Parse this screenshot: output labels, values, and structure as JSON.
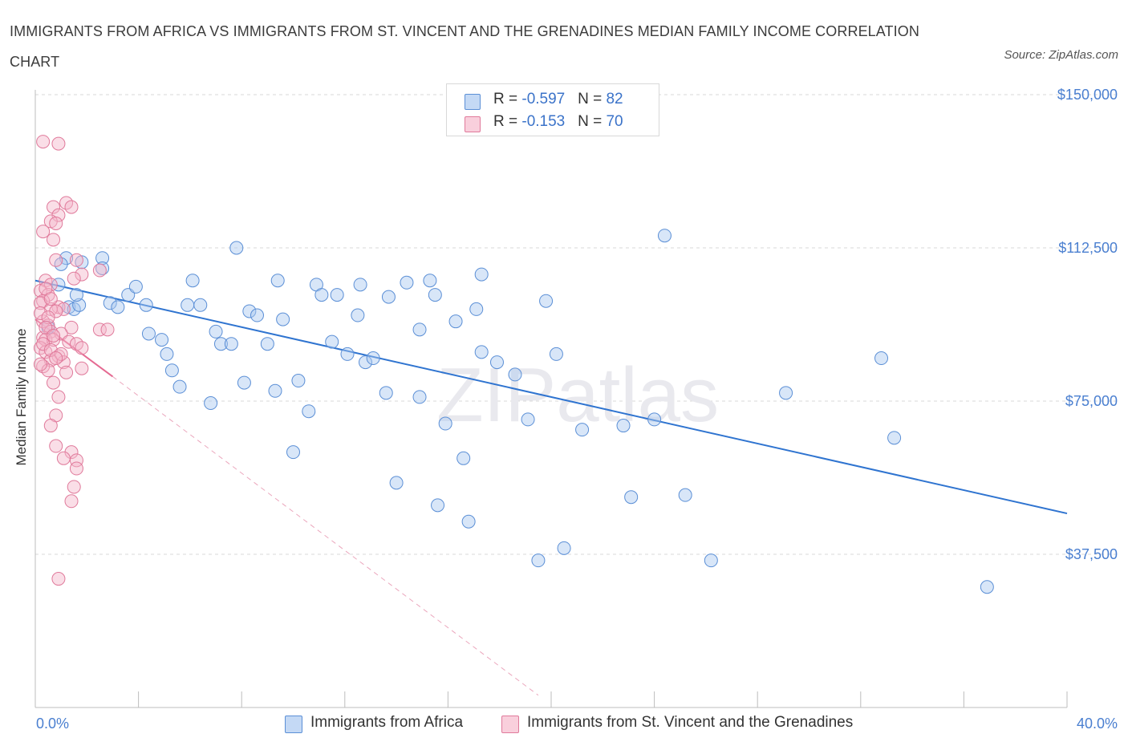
{
  "title": "IMMIGRANTS FROM AFRICA VS IMMIGRANTS FROM ST. VINCENT AND THE GRENADINES MEDIAN FAMILY INCOME CORRELATION CHART",
  "source": "Source: ZipAtlas.com",
  "watermark": "ZIPatlas",
  "legend": {
    "rows": [
      {
        "r_label": "R = ",
        "r_value": "-0.597",
        "n_label": "N = ",
        "n_value": "82",
        "color": "#a9c8f0"
      },
      {
        "r_label": "R = ",
        "r_value": "-0.153",
        "n_label": "N = ",
        "n_value": "70",
        "color": "#f5b6c9"
      }
    ]
  },
  "bottom_legend": [
    {
      "label": "Immigrants from Africa",
      "color": "#a9c8f0"
    },
    {
      "label": "Immigrants from St. Vincent and the Grenadines",
      "color": "#f5b6c9"
    }
  ],
  "chart_data": {
    "type": "scatter",
    "title": "IMMIGRANTS FROM AFRICA VS IMMIGRANTS FROM ST. VINCENT AND THE GRENADINES MEDIAN FAMILY INCOME CORRELATION CHART",
    "xlabel": "",
    "ylabel": "Median Family Income",
    "xlim": [
      0,
      40
    ],
    "ylim": [
      0,
      150000
    ],
    "x_tick_labels": [
      "0.0%",
      "40.0%"
    ],
    "y_ticks": [
      37500,
      75000,
      112500,
      150000
    ],
    "y_tick_labels": [
      "$37,500",
      "$75,000",
      "$112,500",
      "$150,000"
    ],
    "grid": "horizontal dashed",
    "legend_position": "top-center",
    "series": [
      {
        "name": "Immigrants from Africa",
        "color": "#a9c8f0",
        "stroke": "#5b8fd6",
        "r": -0.597,
        "n": 82,
        "trend": {
          "x": [
            0,
            40
          ],
          "y": [
            104500,
            47500
          ]
        },
        "points": [
          [
            1.2,
            110000
          ],
          [
            1.0,
            108500
          ],
          [
            1.3,
            98000
          ],
          [
            1.5,
            97500
          ],
          [
            1.7,
            98500
          ],
          [
            1.8,
            109000
          ],
          [
            2.6,
            110000
          ],
          [
            2.6,
            107500
          ],
          [
            2.9,
            99000
          ],
          [
            3.2,
            98000
          ],
          [
            3.6,
            101000
          ],
          [
            3.9,
            103000
          ],
          [
            4.3,
            98500
          ],
          [
            4.4,
            91500
          ],
          [
            4.9,
            90000
          ],
          [
            5.1,
            86500
          ],
          [
            5.3,
            82500
          ],
          [
            5.6,
            78500
          ],
          [
            5.9,
            98500
          ],
          [
            6.1,
            104500
          ],
          [
            6.4,
            98500
          ],
          [
            6.8,
            74500
          ],
          [
            7.0,
            92000
          ],
          [
            7.2,
            89000
          ],
          [
            7.6,
            89000
          ],
          [
            7.8,
            112500
          ],
          [
            8.1,
            79500
          ],
          [
            8.3,
            97000
          ],
          [
            8.6,
            96000
          ],
          [
            9.0,
            89000
          ],
          [
            9.3,
            77500
          ],
          [
            9.4,
            104500
          ],
          [
            9.6,
            95000
          ],
          [
            10.0,
            62500
          ],
          [
            10.2,
            80000
          ],
          [
            10.6,
            72500
          ],
          [
            10.9,
            103500
          ],
          [
            11.1,
            101000
          ],
          [
            11.5,
            89500
          ],
          [
            11.7,
            101000
          ],
          [
            12.1,
            86500
          ],
          [
            12.5,
            96000
          ],
          [
            12.6,
            103500
          ],
          [
            12.8,
            84500
          ],
          [
            13.1,
            85500
          ],
          [
            13.6,
            77000
          ],
          [
            13.7,
            100500
          ],
          [
            14.0,
            55000
          ],
          [
            14.4,
            104000
          ],
          [
            14.9,
            76000
          ],
          [
            14.9,
            92500
          ],
          [
            15.3,
            104500
          ],
          [
            15.5,
            101000
          ],
          [
            15.6,
            49500
          ],
          [
            15.9,
            69500
          ],
          [
            16.3,
            94500
          ],
          [
            16.6,
            61000
          ],
          [
            16.8,
            45500
          ],
          [
            17.1,
            97500
          ],
          [
            17.3,
            106000
          ],
          [
            17.3,
            87000
          ],
          [
            17.9,
            84500
          ],
          [
            18.6,
            81500
          ],
          [
            19.1,
            70500
          ],
          [
            19.5,
            36000
          ],
          [
            19.8,
            99500
          ],
          [
            20.2,
            86500
          ],
          [
            20.5,
            39000
          ],
          [
            21.2,
            68000
          ],
          [
            22.8,
            69000
          ],
          [
            23.1,
            51500
          ],
          [
            24.0,
            70500
          ],
          [
            24.4,
            115500
          ],
          [
            25.2,
            52000
          ],
          [
            26.2,
            36000
          ],
          [
            29.1,
            77000
          ],
          [
            32.8,
            85500
          ],
          [
            33.3,
            66000
          ],
          [
            36.9,
            29500
          ],
          [
            0.9,
            103500
          ],
          [
            1.6,
            101000
          ],
          [
            0.5,
            93000
          ]
        ]
      },
      {
        "name": "Immigrants from St. Vincent and the Grenadines",
        "color": "#f5b6c9",
        "stroke": "#e07a9b",
        "r": -0.153,
        "n": 70,
        "trend": {
          "x": [
            0,
            3.0
          ],
          "y": [
            95000,
            81000
          ]
        },
        "trend_extended": {
          "x": [
            3.0,
            19.5
          ],
          "y": [
            81000,
            3000
          ]
        },
        "points": [
          [
            0.3,
            138500
          ],
          [
            0.9,
            138000
          ],
          [
            1.2,
            123500
          ],
          [
            1.4,
            122500
          ],
          [
            0.7,
            122500
          ],
          [
            0.9,
            120500
          ],
          [
            0.6,
            119000
          ],
          [
            0.8,
            118500
          ],
          [
            0.3,
            116500
          ],
          [
            0.7,
            114500
          ],
          [
            1.6,
            109500
          ],
          [
            0.8,
            109500
          ],
          [
            2.5,
            107000
          ],
          [
            1.8,
            106000
          ],
          [
            1.5,
            105000
          ],
          [
            0.4,
            104500
          ],
          [
            0.6,
            103500
          ],
          [
            0.2,
            102000
          ],
          [
            0.5,
            101000
          ],
          [
            0.3,
            99500
          ],
          [
            0.2,
            99000
          ],
          [
            0.9,
            98000
          ],
          [
            1.1,
            97500
          ],
          [
            0.6,
            97500
          ],
          [
            0.8,
            97000
          ],
          [
            0.3,
            94500
          ],
          [
            0.5,
            93500
          ],
          [
            1.4,
            93000
          ],
          [
            2.5,
            92500
          ],
          [
            2.8,
            92500
          ],
          [
            0.6,
            92000
          ],
          [
            1.0,
            91500
          ],
          [
            0.3,
            90500
          ],
          [
            0.4,
            90000
          ],
          [
            0.7,
            90000
          ],
          [
            1.3,
            89500
          ],
          [
            1.6,
            89000
          ],
          [
            0.2,
            88000
          ],
          [
            1.8,
            88000
          ],
          [
            0.4,
            87000
          ],
          [
            0.9,
            86000
          ],
          [
            0.6,
            85000
          ],
          [
            1.1,
            84500
          ],
          [
            0.3,
            83500
          ],
          [
            1.8,
            83000
          ],
          [
            0.5,
            82500
          ],
          [
            0.7,
            79500
          ],
          [
            0.9,
            76000
          ],
          [
            0.8,
            71500
          ],
          [
            0.6,
            69000
          ],
          [
            0.8,
            64000
          ],
          [
            1.4,
            62500
          ],
          [
            1.1,
            61000
          ],
          [
            1.6,
            60500
          ],
          [
            1.6,
            58500
          ],
          [
            1.5,
            54000
          ],
          [
            1.4,
            50500
          ],
          [
            0.9,
            31500
          ],
          [
            0.4,
            102500
          ],
          [
            0.6,
            100000
          ],
          [
            0.2,
            96500
          ],
          [
            0.5,
            95500
          ],
          [
            0.4,
            93000
          ],
          [
            0.7,
            91000
          ],
          [
            0.3,
            89000
          ],
          [
            0.6,
            87500
          ],
          [
            1.0,
            86500
          ],
          [
            0.8,
            85500
          ],
          [
            0.2,
            84000
          ],
          [
            1.2,
            82000
          ]
        ]
      }
    ]
  }
}
